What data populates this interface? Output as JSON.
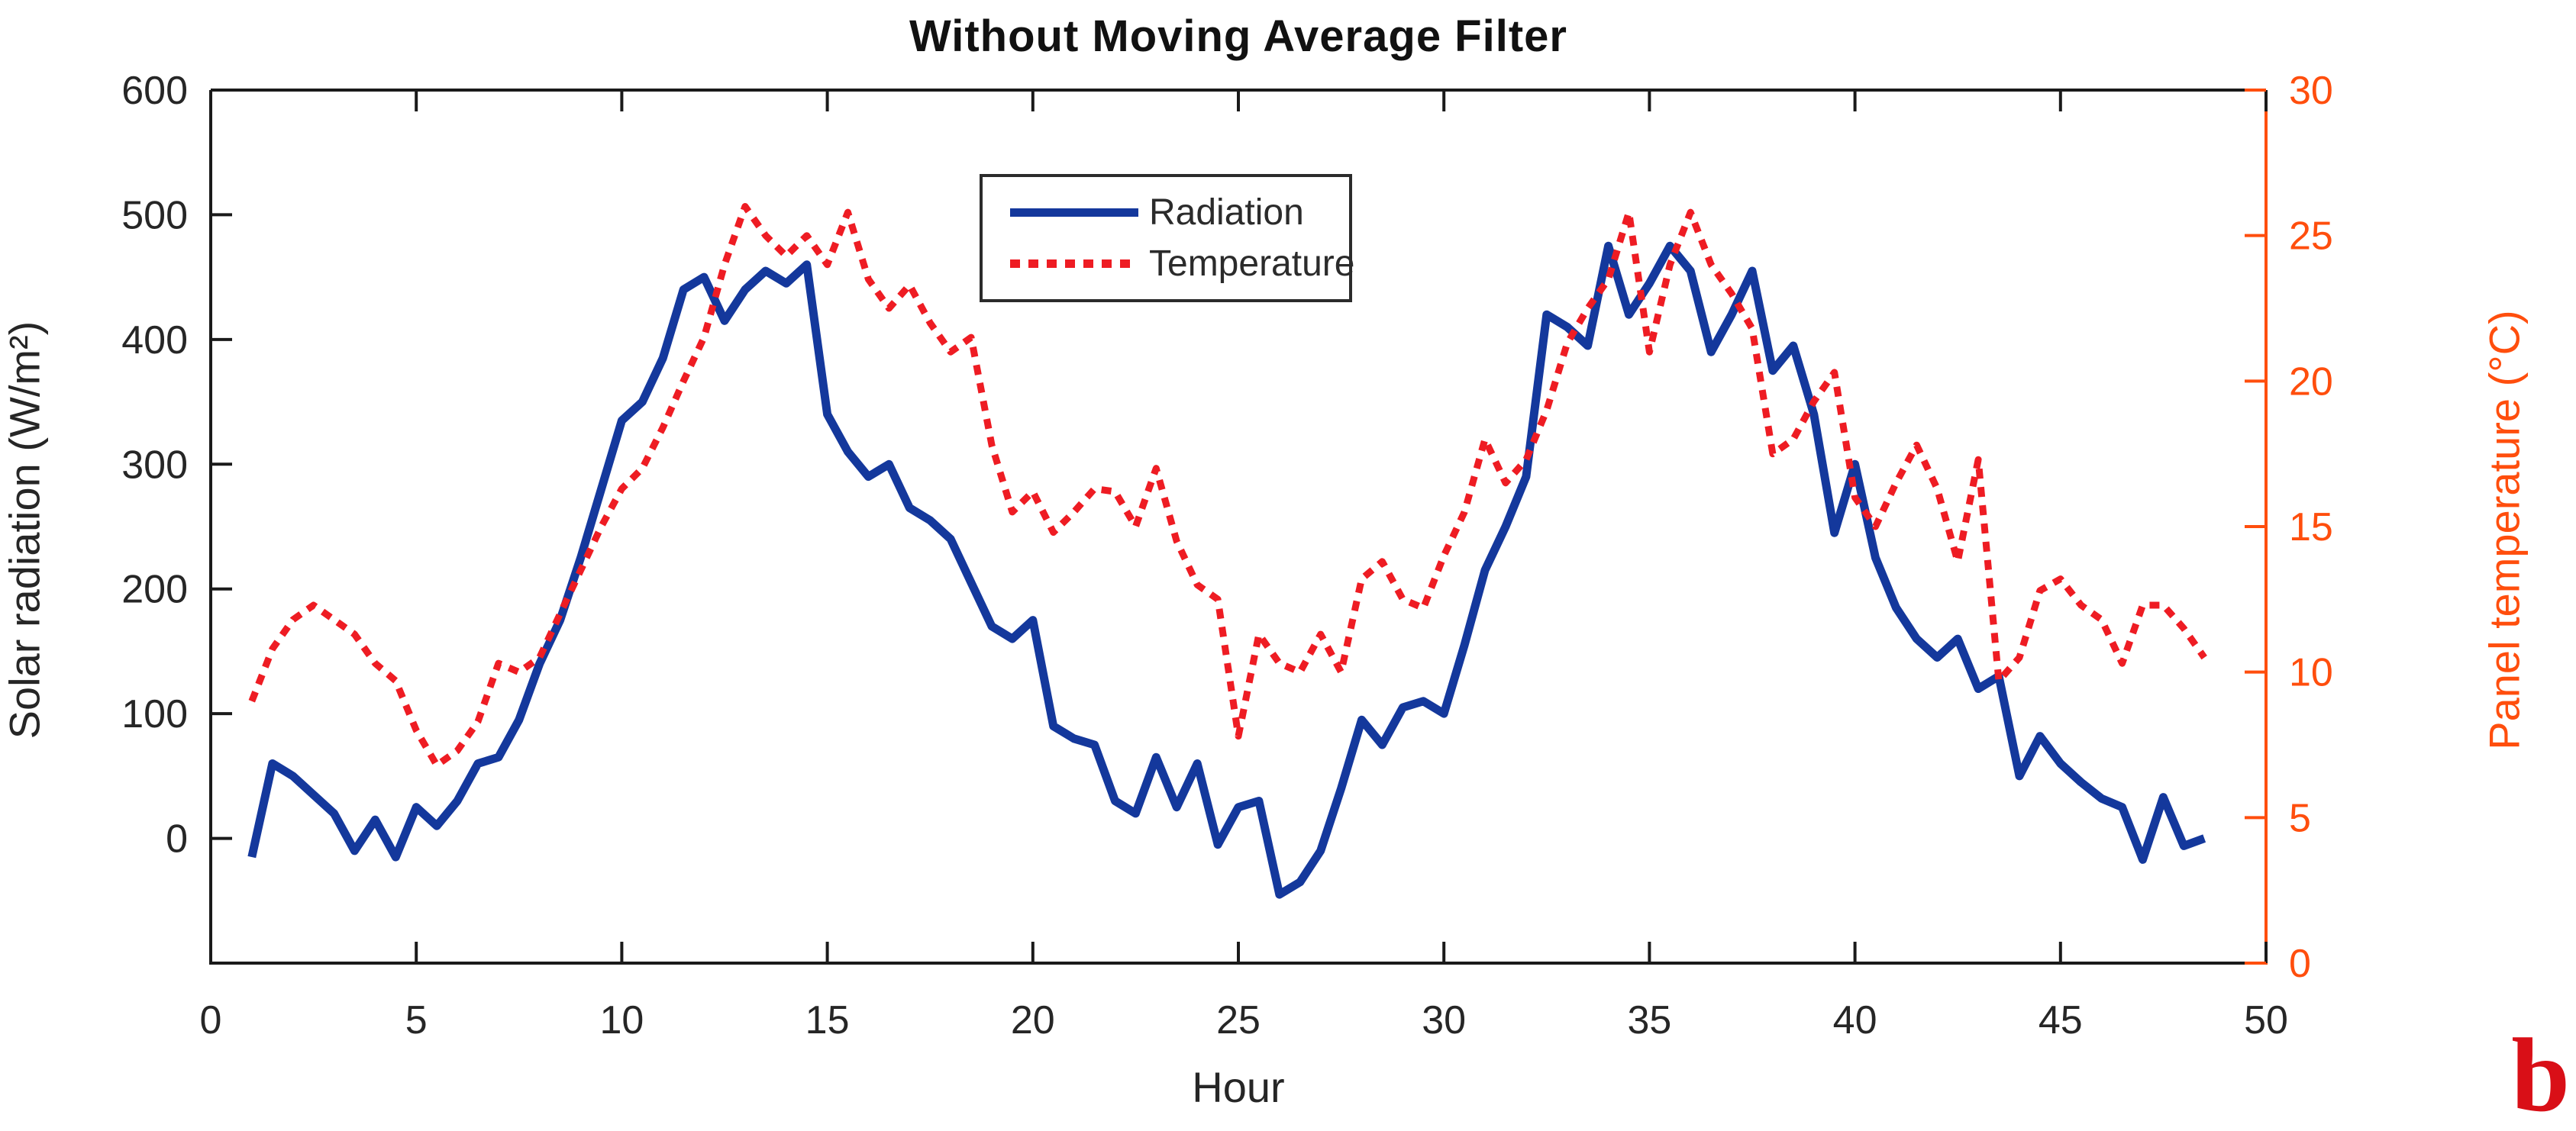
{
  "figure": {
    "title": "Without Moving Average Filter",
    "annotation": "b",
    "colors": {
      "radiation_line": "#14389c",
      "temperature_line": "#ee1c23",
      "right_axis": "#ff4e0d",
      "axis_black": "#1a1a1a",
      "annotation": "#d90f17",
      "background": "#ffffff"
    }
  },
  "chart_data": {
    "type": "line",
    "title": "Without Moving Average Filter",
    "xlabel": "Hour",
    "x_range": [
      0,
      50
    ],
    "x_ticks": [
      0,
      5,
      10,
      15,
      20,
      25,
      30,
      35,
      40,
      45,
      50
    ],
    "left_axis": {
      "label": "Solar radiation (W/m²)",
      "range": [
        -100,
        600
      ],
      "ticks": [
        0,
        100,
        200,
        300,
        400,
        500,
        600
      ],
      "color": "#1a1a1a"
    },
    "right_axis": {
      "label": "Panel temperature (°C)",
      "range": [
        0,
        30
      ],
      "ticks": [
        0,
        5,
        10,
        15,
        20,
        25,
        30
      ],
      "color": "#ff4e0d"
    },
    "x_start": 1,
    "x_step": 0.5,
    "legend_position": "top-center",
    "grid": false,
    "series": [
      {
        "name": "Radiation",
        "axis": "left",
        "style": "solid",
        "color": "#14389c",
        "values": [
          -15,
          60,
          50,
          35,
          20,
          -10,
          15,
          -15,
          25,
          10,
          30,
          60,
          65,
          95,
          140,
          175,
          225,
          280,
          335,
          350,
          385,
          440,
          450,
          415,
          440,
          455,
          445,
          460,
          340,
          310,
          290,
          300,
          265,
          255,
          240,
          205,
          170,
          160,
          175,
          90,
          80,
          75,
          30,
          20,
          65,
          25,
          60,
          -5,
          25,
          30,
          -45,
          -35,
          -10,
          40,
          95,
          75,
          105,
          110,
          100,
          155,
          215,
          250,
          290,
          420,
          410,
          395,
          475,
          420,
          445,
          475,
          455,
          390,
          420,
          455,
          375,
          395,
          340,
          245,
          300,
          225,
          185,
          160,
          145,
          160,
          120,
          130,
          50,
          82,
          60,
          45,
          32,
          25,
          -17,
          33,
          -6,
          0
        ]
      },
      {
        "name": "Temperature",
        "axis": "right",
        "style": "dotted",
        "color": "#ee1c23",
        "values": [
          9,
          10.8,
          11.8,
          12.3,
          11.8,
          11.3,
          10.3,
          9.7,
          8,
          6.8,
          7.3,
          8.3,
          10.3,
          10,
          10.5,
          12,
          13.5,
          15,
          16.3,
          17,
          18.4,
          20,
          21.5,
          24,
          26,
          25,
          24.3,
          25,
          24,
          25.8,
          23.5,
          22.5,
          23.3,
          22,
          21,
          21.5,
          17.8,
          15.5,
          16.2,
          14.8,
          15.5,
          16.3,
          16.2,
          15,
          17,
          14.5,
          13,
          12.5,
          7.8,
          11.3,
          10.3,
          10,
          11.3,
          10,
          13.2,
          13.8,
          12.5,
          12.2,
          14,
          15.5,
          18,
          16.5,
          17.3,
          19,
          21.3,
          22.5,
          23.5,
          25.8,
          21,
          24,
          25.8,
          24,
          23,
          21.8,
          17.5,
          18,
          19.3,
          20.3,
          16,
          15,
          16.5,
          17.8,
          16.3,
          13.8,
          17.3,
          9.7,
          10.5,
          12.8,
          13.2,
          12.3,
          11.8,
          10.3,
          12.3,
          12.3,
          11.5,
          10.5
        ]
      }
    ]
  }
}
